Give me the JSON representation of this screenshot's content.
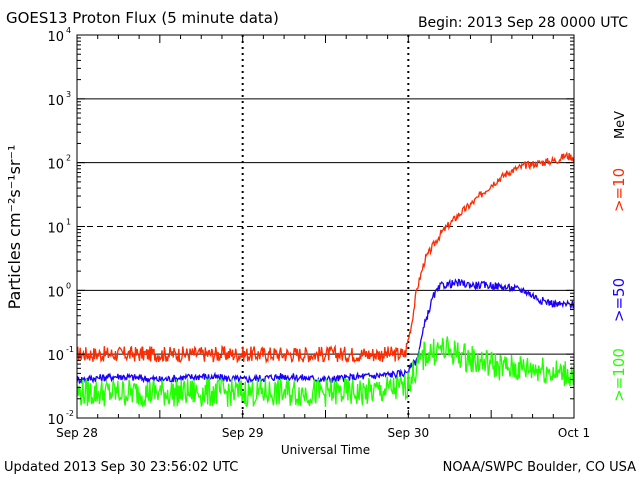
{
  "header": {
    "title": "GOES13 Proton Flux (5 minute data)",
    "begin": "Begin: 2013 Sep 28 0000 UTC"
  },
  "footer": {
    "updated": "Updated 2013 Sep 30 23:56:02 UTC",
    "credit": "NOAA/SWPC Boulder, CO USA"
  },
  "chart_data": {
    "type": "line",
    "title": "GOES13 Proton Flux (5 minute data)",
    "xlabel": "Universal Time",
    "ylabel": "Particles cm⁻²s⁻¹sr⁻¹",
    "y_scale": "log",
    "ylim": [
      0.01,
      10000
    ],
    "xlim": [
      0,
      3
    ],
    "x_ticks": [
      "Sep 28",
      "Sep 29",
      "Sep 30",
      "Oct 1"
    ],
    "y_ticks": [
      {
        "base": "10",
        "exp": "4",
        "value": 10000
      },
      {
        "base": "10",
        "exp": "3",
        "value": 1000
      },
      {
        "base": "10",
        "exp": "2",
        "value": 100
      },
      {
        "base": "10",
        "exp": "1",
        "value": 10
      },
      {
        "base": "10",
        "exp": "0",
        "value": 1
      },
      {
        "base": "10",
        "exp": "-1",
        "value": 0.1
      },
      {
        "base": "10",
        "exp": "-2",
        "value": 0.01
      }
    ],
    "right_label_unit": "MeV",
    "grid": "horizontal at each decade (10¹ dashed); vertical dashed day lines",
    "series": [
      {
        "name": ">=10",
        "color": "#ff2a00",
        "x": [
          0,
          0.25,
          0.5,
          0.75,
          1.0,
          1.25,
          1.5,
          1.75,
          1.98,
          2.02,
          2.05,
          2.1,
          2.15,
          2.2,
          2.3,
          2.4,
          2.5,
          2.6,
          2.7,
          2.8,
          2.9,
          2.95,
          3.0
        ],
        "values": [
          0.1,
          0.1,
          0.1,
          0.1,
          0.1,
          0.1,
          0.1,
          0.1,
          0.1,
          0.3,
          1.0,
          3.0,
          5.0,
          8.0,
          15,
          25,
          45,
          70,
          90,
          100,
          110,
          130,
          120
        ]
      },
      {
        "name": ">=50",
        "color": "#1a00ff",
        "x": [
          0,
          0.25,
          0.5,
          0.75,
          1.0,
          1.25,
          1.5,
          1.75,
          1.98,
          2.05,
          2.1,
          2.15,
          2.2,
          2.3,
          2.4,
          2.5,
          2.6,
          2.7,
          2.8,
          2.9,
          3.0
        ],
        "values": [
          0.04,
          0.045,
          0.04,
          0.045,
          0.04,
          0.045,
          0.04,
          0.045,
          0.05,
          0.08,
          0.3,
          0.8,
          1.2,
          1.3,
          1.2,
          1.2,
          1.1,
          1.0,
          0.7,
          0.6,
          0.6
        ]
      },
      {
        "name": ">=100",
        "color": "#22ff00",
        "x": [
          0,
          0.25,
          0.5,
          0.75,
          1.0,
          1.25,
          1.5,
          1.75,
          1.98,
          2.1,
          2.2,
          2.3,
          2.4,
          2.5,
          2.6,
          2.7,
          2.8,
          2.9,
          3.0
        ],
        "values": [
          0.025,
          0.025,
          0.025,
          0.025,
          0.025,
          0.025,
          0.025,
          0.025,
          0.03,
          0.1,
          0.12,
          0.1,
          0.08,
          0.07,
          0.06,
          0.06,
          0.06,
          0.05,
          0.05
        ]
      }
    ]
  }
}
